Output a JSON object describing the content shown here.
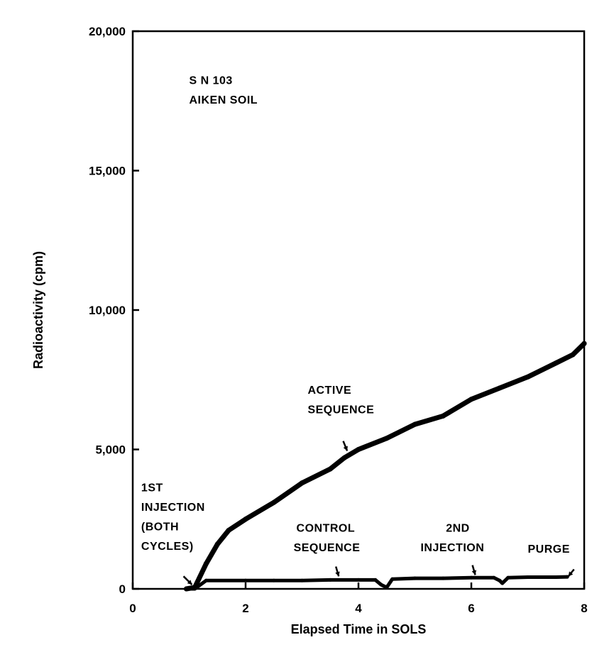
{
  "chart_data": {
    "type": "line",
    "title": "",
    "xlabel": "Elapsed Time in SOLS",
    "ylabel": "Radioactivity (cpm)",
    "xlim": [
      0,
      8
    ],
    "ylim": [
      0,
      20000
    ],
    "x_ticks": [
      "0",
      "2",
      "4",
      "6",
      "8"
    ],
    "y_ticks": [
      "0",
      "5,000",
      "10,000",
      "15,000",
      "20,000"
    ],
    "grid": false,
    "legend": "none",
    "series": [
      {
        "x": [
          0.95,
          1.1,
          1.3,
          1.5,
          1.7,
          2.0,
          2.5,
          3.0,
          3.5,
          3.75,
          4.0,
          4.5,
          5.0,
          5.5,
          6.0,
          6.5,
          7.0,
          7.5,
          7.8,
          8.0
        ],
        "y": [
          0,
          50,
          900,
          1600,
          2100,
          2500,
          3100,
          3800,
          4300,
          4700,
          5000,
          5400,
          5900,
          6200,
          6800,
          7200,
          7600,
          8100,
          8400,
          8800
        ]
      },
      {
        "x": [
          0.95,
          1.1,
          1.3,
          2.0,
          2.5,
          3.0,
          3.5,
          4.0,
          4.3,
          4.4,
          4.5,
          4.6,
          5.0,
          5.5,
          6.0,
          6.4,
          6.5,
          6.55,
          6.65,
          7.0,
          7.5,
          7.7
        ],
        "y": [
          0,
          0,
          300,
          300,
          300,
          300,
          320,
          320,
          320,
          150,
          50,
          350,
          380,
          380,
          400,
          400,
          300,
          200,
          400,
          420,
          420,
          430
        ]
      }
    ],
    "annotations": [
      {
        "label": "S N 103",
        "x": 1.0,
        "y": 18100
      },
      {
        "label": "AIKEN SOIL",
        "x": 1.0,
        "y": 17400
      },
      {
        "label": "ACTIVE",
        "x": 3.1,
        "y": 7000
      },
      {
        "label": "SEQUENCE",
        "x": 3.1,
        "y": 6300
      },
      {
        "label": "1ST",
        "x": 0.15,
        "y": 3500
      },
      {
        "label": "INJECTION",
        "x": 0.15,
        "y": 2800
      },
      {
        "label": "(BOTH",
        "x": 0.15,
        "y": 2100
      },
      {
        "label": "CYCLES)",
        "x": 0.15,
        "y": 1400
      },
      {
        "label": "CONTROL",
        "x": 2.9,
        "y": 2050
      },
      {
        "label": "SEQUENCE",
        "x": 2.85,
        "y": 1350
      },
      {
        "label": "2ND",
        "x": 5.55,
        "y": 2050
      },
      {
        "label": "INJECTION",
        "x": 5.1,
        "y": 1350
      },
      {
        "label": "PURGE",
        "x": 7.0,
        "y": 1300
      }
    ],
    "arrows": [
      {
        "x1": 0.9,
        "y1": 450,
        "x2": 1.05,
        "y2": 150
      },
      {
        "x1": 3.73,
        "y1": 5300,
        "x2": 3.8,
        "y2": 4950
      },
      {
        "x1": 3.6,
        "y1": 800,
        "x2": 3.65,
        "y2": 450
      },
      {
        "x1": 6.02,
        "y1": 850,
        "x2": 6.07,
        "y2": 500
      },
      {
        "x1": 7.82,
        "y1": 700,
        "x2": 7.72,
        "y2": 450
      }
    ]
  },
  "colors": {
    "ink": "#000000",
    "background": "#ffffff"
  }
}
